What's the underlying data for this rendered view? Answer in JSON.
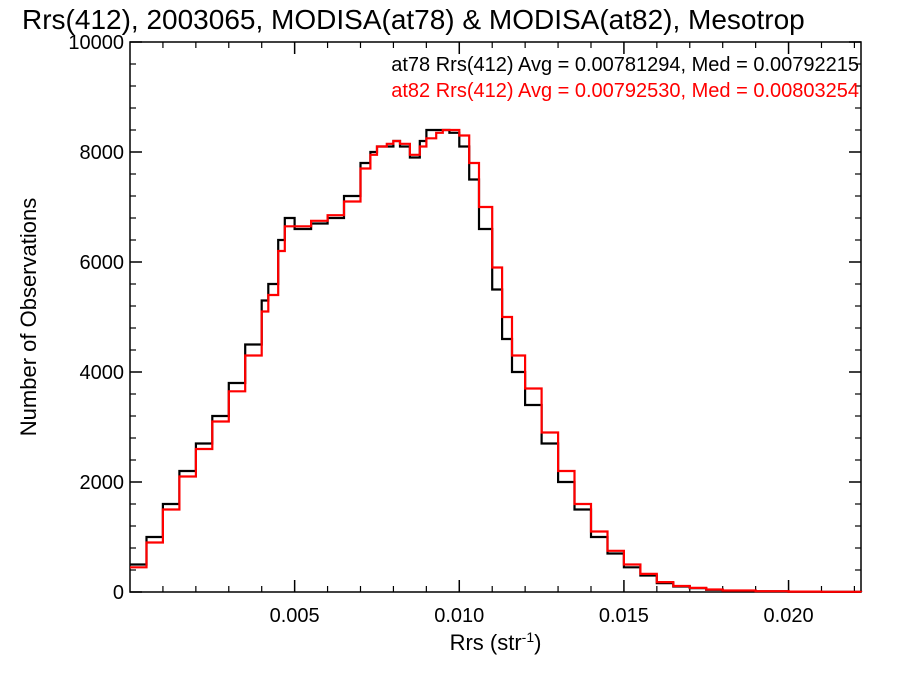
{
  "chart_data": {
    "type": "line",
    "title": "Rrs(412), 2003065, MODISA(at78) & MODISA(at82), Mesotrop",
    "xlabel": "Rrs (str",
    "xlabel_sup": "-1",
    "xlabel_close": ")",
    "ylabel": "Number of Observations",
    "xlim": [
      0.0,
      0.0222
    ],
    "ylim": [
      0,
      10000
    ],
    "x_ticks": [
      0.005,
      0.01,
      0.015,
      0.02
    ],
    "x_tick_labels": [
      "0.005",
      "0.010",
      "0.015",
      "0.020"
    ],
    "y_ticks": [
      0,
      2000,
      4000,
      6000,
      8000,
      10000
    ],
    "y_tick_labels": [
      "0",
      "2000",
      "4000",
      "6000",
      "8000",
      "10000"
    ],
    "grid": false,
    "legend_placement": "top-right",
    "annotations": [
      {
        "text": "at78 Rrs(412) Avg = 0.00781294, Med = 0.00792215",
        "color": "#000000"
      },
      {
        "text": "at82 Rrs(412) Avg = 0.00792530, Med = 0.00803254",
        "color": "#ff0000"
      }
    ],
    "series": [
      {
        "color": "#000000",
        "x": [
          0.0,
          0.0005,
          0.001,
          0.0015,
          0.002,
          0.0025,
          0.003,
          0.0035,
          0.004,
          0.0042,
          0.0045,
          0.0047,
          0.005,
          0.0055,
          0.006,
          0.0065,
          0.007,
          0.0073,
          0.0075,
          0.0078,
          0.008,
          0.0082,
          0.0085,
          0.0088,
          0.009,
          0.0093,
          0.0095,
          0.0097,
          0.01,
          0.0103,
          0.0106,
          0.011,
          0.0113,
          0.0116,
          0.012,
          0.0125,
          0.013,
          0.0135,
          0.014,
          0.0145,
          0.015,
          0.0155,
          0.016,
          0.0165,
          0.017,
          0.0175,
          0.018,
          0.019,
          0.02,
          0.021,
          0.0222
        ],
        "y": [
          500,
          1000,
          1600,
          2200,
          2700,
          3200,
          3800,
          4500,
          5300,
          5600,
          6400,
          6800,
          6600,
          6700,
          6800,
          7200,
          7800,
          8000,
          8100,
          8100,
          8200,
          8100,
          7900,
          8200,
          8400,
          8400,
          8400,
          8350,
          8100,
          7500,
          6600,
          5500,
          4600,
          4000,
          3400,
          2700,
          2000,
          1500,
          1000,
          700,
          450,
          300,
          160,
          100,
          70,
          40,
          25,
          12,
          6,
          2,
          0
        ]
      },
      {
        "color": "#ff0000",
        "x": [
          0.0,
          0.0005,
          0.001,
          0.0015,
          0.002,
          0.0025,
          0.003,
          0.0035,
          0.004,
          0.0042,
          0.0045,
          0.0047,
          0.005,
          0.0055,
          0.006,
          0.0065,
          0.007,
          0.0073,
          0.0075,
          0.0078,
          0.008,
          0.0082,
          0.0085,
          0.0088,
          0.009,
          0.0093,
          0.0095,
          0.0097,
          0.01,
          0.0103,
          0.0106,
          0.011,
          0.0113,
          0.0116,
          0.012,
          0.0125,
          0.013,
          0.0135,
          0.014,
          0.0145,
          0.015,
          0.0155,
          0.016,
          0.0165,
          0.017,
          0.0175,
          0.018,
          0.019,
          0.02,
          0.021,
          0.0222
        ],
        "y": [
          450,
          900,
          1500,
          2100,
          2600,
          3100,
          3650,
          4300,
          5100,
          5400,
          6200,
          6650,
          6650,
          6750,
          6850,
          7100,
          7700,
          7950,
          8100,
          8150,
          8200,
          8150,
          7950,
          8100,
          8250,
          8350,
          8400,
          8400,
          8300,
          7800,
          7000,
          5900,
          5000,
          4300,
          3700,
          2900,
          2200,
          1600,
          1100,
          750,
          500,
          330,
          180,
          110,
          75,
          45,
          28,
          14,
          7,
          3,
          0
        ]
      }
    ]
  },
  "colors": {
    "axis": "#000000",
    "series_1": "#000000",
    "series_2": "#ff0000"
  }
}
